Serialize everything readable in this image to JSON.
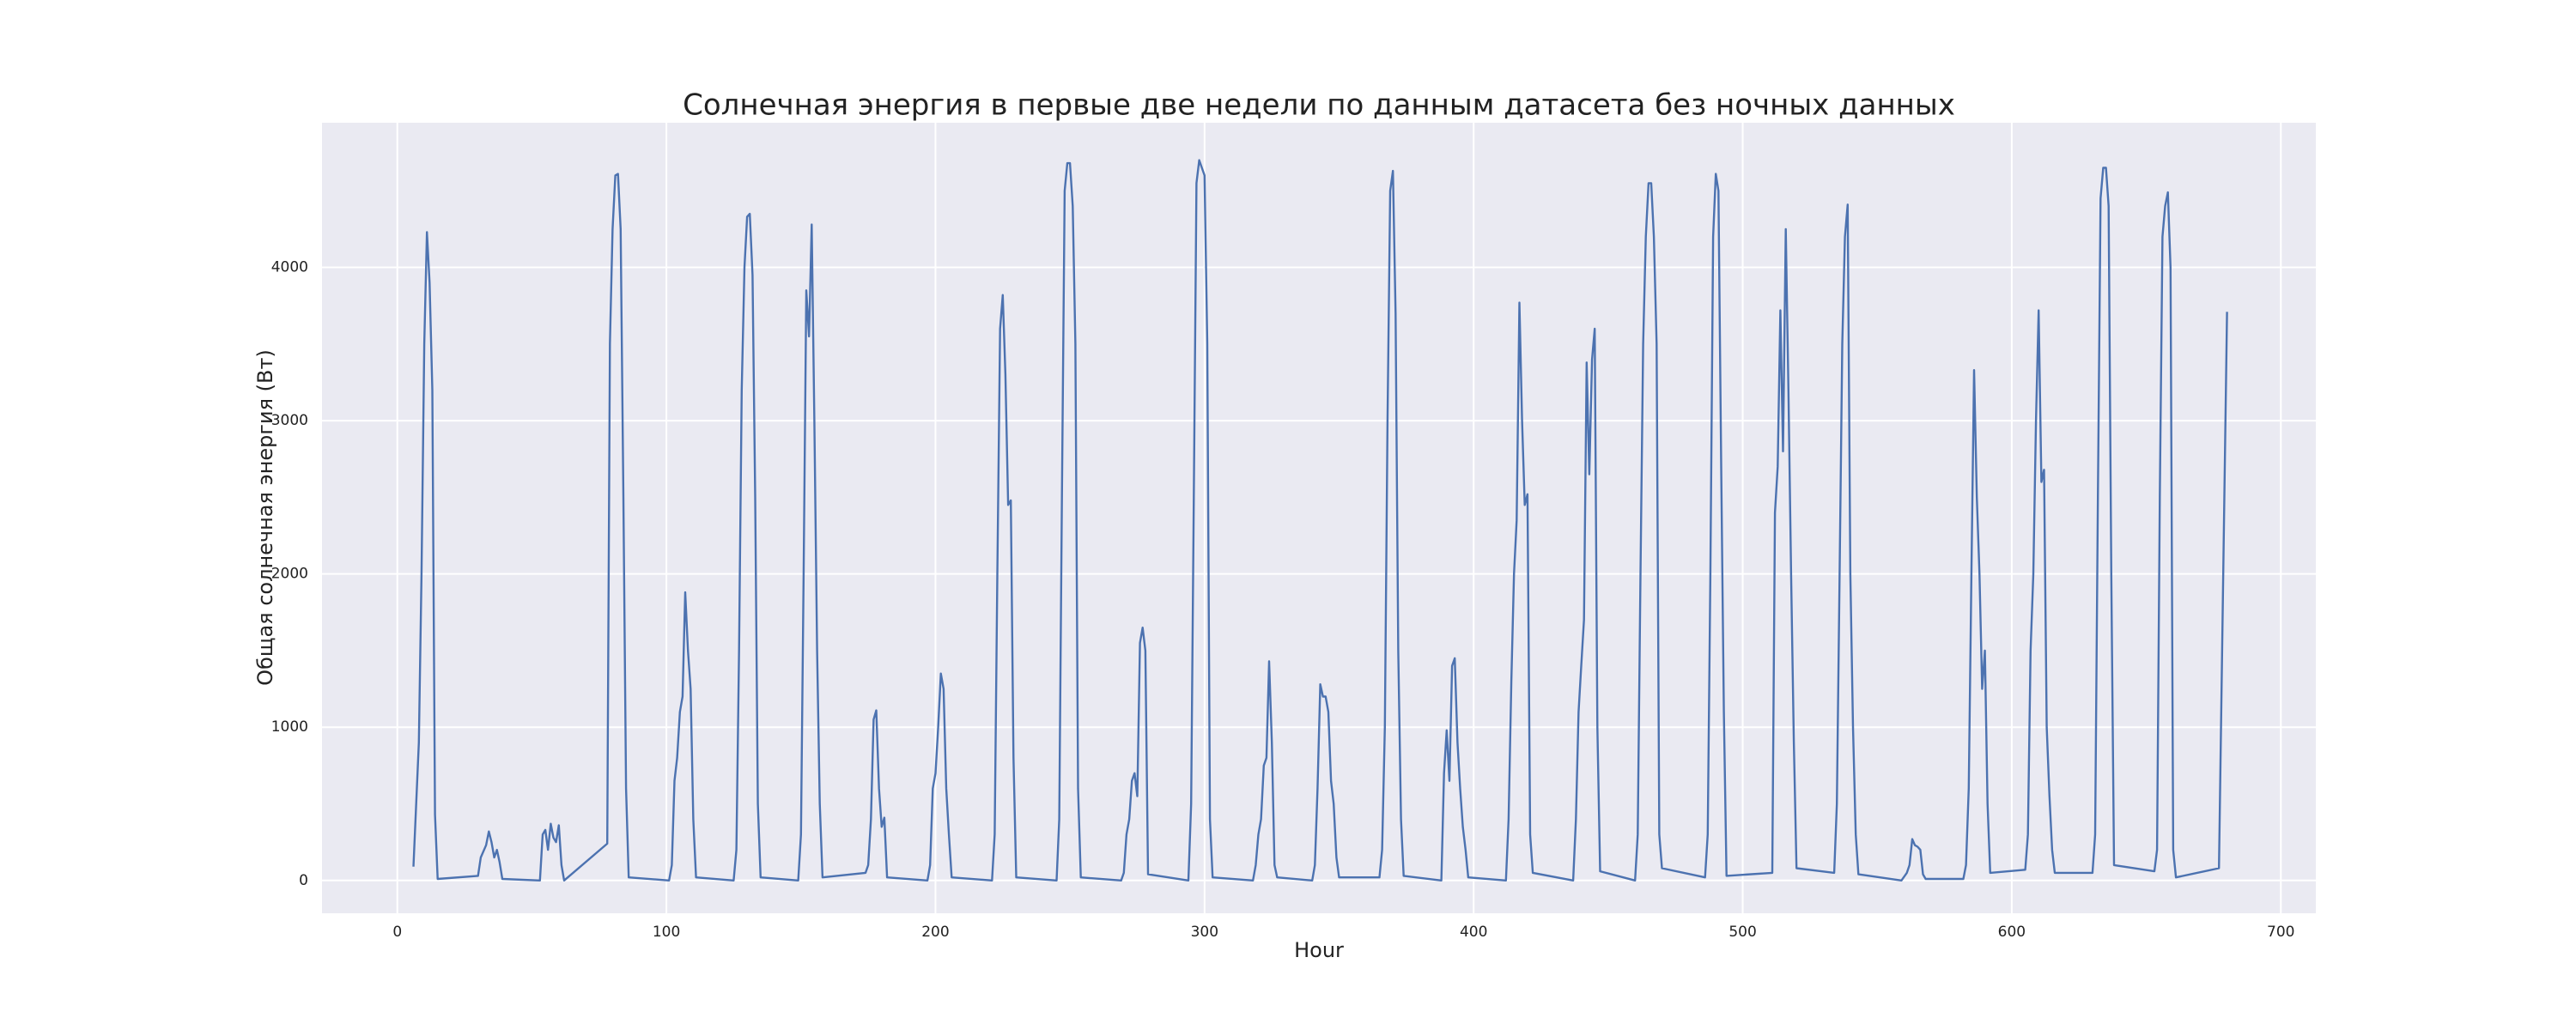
{
  "chart_data": {
    "type": "line",
    "title": "Солнечная энергия в первые две недели по данным датасета без ночных данных",
    "x_label": "Hour",
    "y_label": "Общая солнечная энергия (Вт)",
    "xlim": [
      -28,
      713
    ],
    "ylim": [
      -214,
      4944
    ],
    "xticks": [
      0,
      100,
      200,
      300,
      400,
      500,
      600,
      700
    ],
    "yticks": [
      0,
      1000,
      2000,
      3000,
      4000
    ],
    "grid": true,
    "series": [
      {
        "color": "#4c72b0",
        "x": [
          6,
          8,
          9,
          10,
          11,
          12,
          13,
          14,
          15,
          30,
          31,
          33,
          34,
          35,
          36,
          37,
          38,
          39,
          53,
          54,
          55,
          56,
          57,
          58,
          59,
          60,
          61,
          62,
          78,
          79,
          80,
          81,
          82,
          83,
          84,
          85,
          86,
          101,
          102,
          103,
          104,
          105,
          106,
          107,
          108,
          109,
          110,
          111,
          125,
          126,
          127,
          128,
          129,
          130,
          131,
          132,
          133,
          134,
          135,
          149,
          150,
          151,
          152,
          153,
          154,
          155,
          156,
          157,
          158,
          174,
          175,
          176,
          177,
          178,
          179,
          180,
          181,
          182,
          197,
          198,
          199,
          200,
          201,
          202,
          203,
          204,
          205,
          206,
          221,
          222,
          223,
          224,
          225,
          226,
          227,
          228,
          229,
          230,
          245,
          246,
          247,
          248,
          249,
          250,
          251,
          252,
          253,
          254,
          269,
          270,
          271,
          272,
          273,
          274,
          275,
          276,
          277,
          278,
          279,
          294,
          295,
          296,
          297,
          298,
          299,
          300,
          301,
          302,
          303,
          318,
          319,
          320,
          321,
          322,
          323,
          324,
          325,
          326,
          327,
          340,
          341,
          342,
          343,
          344,
          345,
          346,
          347,
          348,
          349,
          350,
          365,
          366,
          367,
          368,
          369,
          370,
          371,
          372,
          373,
          374,
          388,
          389,
          390,
          391,
          392,
          393,
          394,
          395,
          396,
          397,
          398,
          412,
          413,
          414,
          415,
          416,
          417,
          418,
          419,
          420,
          421,
          422,
          437,
          438,
          439,
          440,
          441,
          442,
          443,
          444,
          445,
          446,
          447,
          460,
          461,
          462,
          463,
          464,
          465,
          466,
          467,
          468,
          469,
          470,
          486,
          487,
          488,
          489,
          490,
          491,
          492,
          493,
          494,
          511,
          512,
          513,
          514,
          515,
          516,
          517,
          518,
          519,
          520,
          534,
          535,
          536,
          537,
          538,
          539,
          540,
          541,
          542,
          543,
          559,
          561,
          562,
          563,
          564,
          565,
          566,
          567,
          568,
          582,
          583,
          584,
          585,
          586,
          587,
          588,
          589,
          590,
          591,
          592,
          605,
          606,
          607,
          608,
          609,
          610,
          611,
          612,
          613,
          614,
          615,
          616,
          630,
          631,
          632,
          633,
          634,
          635,
          636,
          637,
          638,
          653,
          654,
          655,
          656,
          657,
          658,
          659,
          660,
          661,
          677,
          680
        ],
        "values": [
          90,
          900,
          2000,
          3500,
          4230,
          3900,
          3200,
          430,
          10,
          30,
          150,
          230,
          320,
          250,
          150,
          200,
          120,
          10,
          0,
          300,
          330,
          200,
          370,
          280,
          250,
          360,
          100,
          0,
          240,
          3500,
          4250,
          4600,
          4610,
          4250,
          2500,
          600,
          20,
          0,
          100,
          650,
          800,
          1100,
          1200,
          1880,
          1500,
          1250,
          400,
          20,
          0,
          200,
          1500,
          3200,
          4000,
          4330,
          4350,
          3950,
          2500,
          500,
          20,
          0,
          300,
          2000,
          3850,
          3550,
          4280,
          3000,
          1500,
          500,
          20,
          50,
          100,
          400,
          1050,
          1110,
          600,
          350,
          410,
          20,
          0,
          100,
          600,
          700,
          1000,
          1350,
          1250,
          600,
          300,
          20,
          0,
          300,
          2000,
          3600,
          3820,
          3300,
          2450,
          2480,
          800,
          20,
          0,
          400,
          2500,
          4500,
          4680,
          4680,
          4400,
          3500,
          600,
          20,
          0,
          50,
          300,
          400,
          650,
          700,
          550,
          1550,
          1650,
          1500,
          40,
          0,
          500,
          2500,
          4550,
          4700,
          4650,
          4600,
          3500,
          400,
          20,
          0,
          100,
          300,
          400,
          750,
          800,
          1430,
          900,
          100,
          20,
          0,
          100,
          600,
          1280,
          1200,
          1200,
          1100,
          650,
          500,
          150,
          20,
          20,
          200,
          1000,
          3000,
          4500,
          4630,
          3700,
          1500,
          400,
          30,
          0,
          700,
          980,
          650,
          1400,
          1450,
          900,
          600,
          350,
          200,
          20,
          0,
          400,
          1300,
          2000,
          2350,
          3770,
          3000,
          2450,
          2520,
          300,
          50,
          0,
          400,
          1100,
          1400,
          1700,
          3380,
          2650,
          3400,
          3600,
          1000,
          60,
          0,
          300,
          2000,
          3500,
          4200,
          4550,
          4550,
          4200,
          3500,
          300,
          80,
          20,
          300,
          2000,
          4200,
          4610,
          4500,
          2700,
          1100,
          30,
          50,
          2400,
          2700,
          3720,
          2800,
          4250,
          3200,
          2000,
          900,
          80,
          50,
          500,
          2000,
          3500,
          4200,
          4410,
          2000,
          1000,
          300,
          40,
          0,
          50,
          100,
          270,
          230,
          220,
          200,
          40,
          10,
          10,
          100,
          600,
          2000,
          3330,
          2500,
          2000,
          1250,
          1500,
          500,
          50,
          70,
          300,
          1500,
          2000,
          3000,
          3720,
          2600,
          2680,
          1000,
          550,
          200,
          50,
          50,
          300,
          2500,
          4450,
          4650,
          4650,
          4400,
          2000,
          100,
          60,
          200,
          2500,
          4200,
          4400,
          4490,
          4000,
          200,
          20,
          80,
          3710
        ]
      }
    ]
  }
}
